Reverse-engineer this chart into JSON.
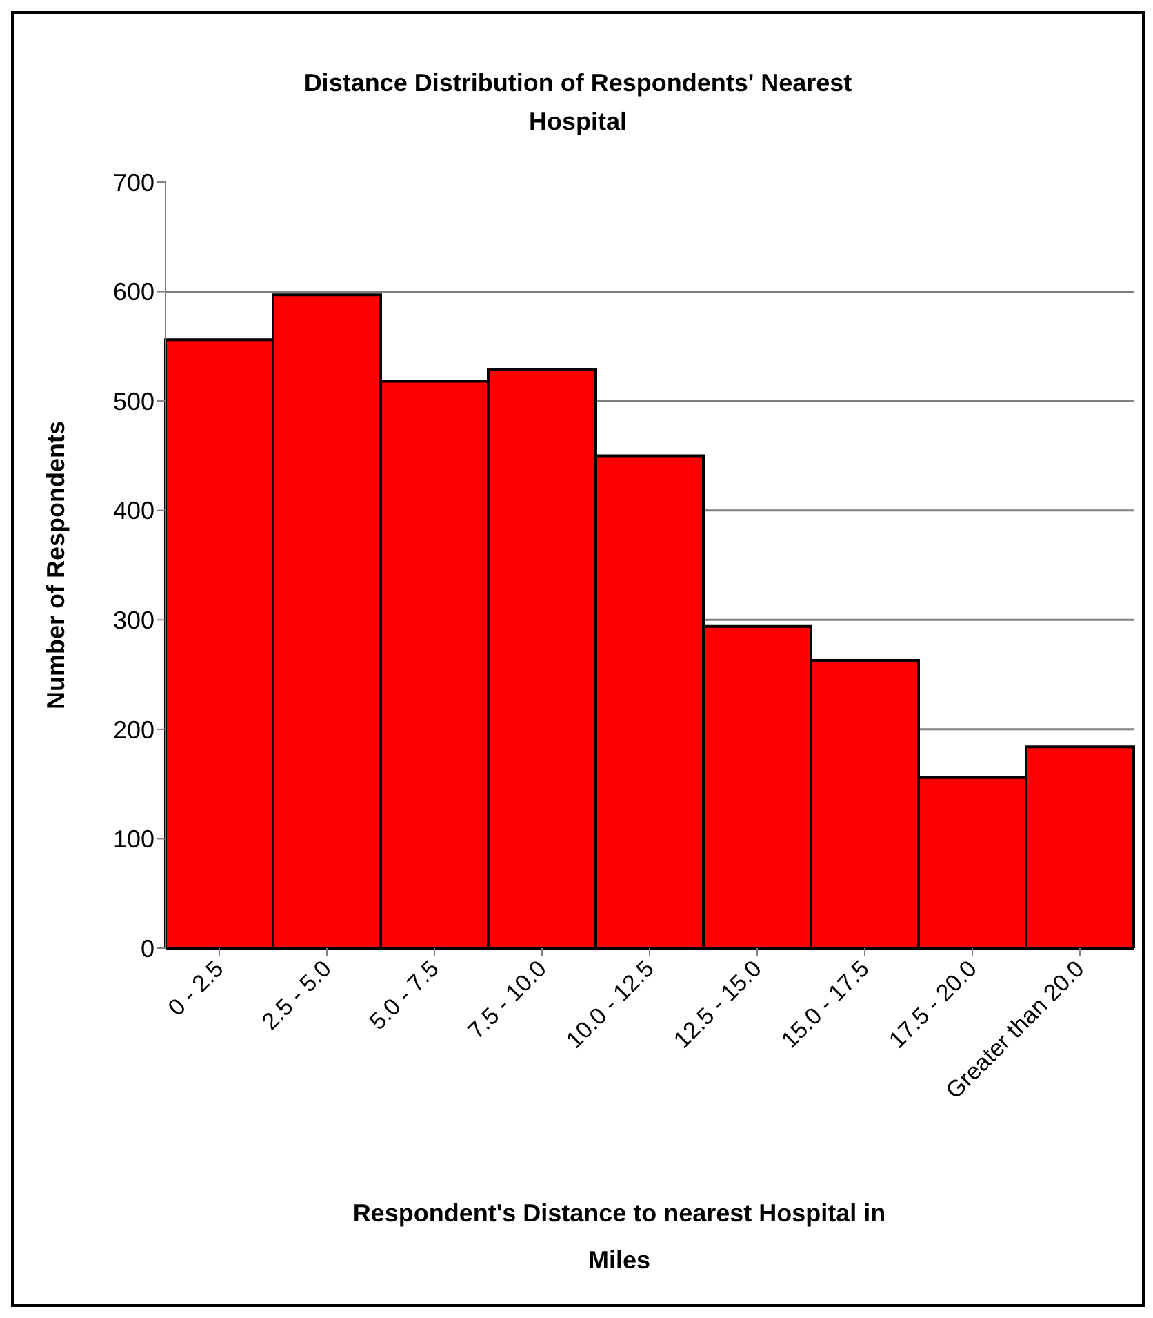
{
  "chart_data": {
    "type": "bar",
    "title": "Distance Distribution of Respondents' Nearest Hospital",
    "xlabel": "Respondent's Distance to nearest Hospital in Miles",
    "ylabel": "Number of Respondents",
    "categories": [
      "0 - 2.5",
      "2.5 - 5.0",
      "5.0 - 7.5",
      "7.5 - 10.0",
      "10.0 - 12.5",
      "12.5 - 15.0",
      "15.0 - 17.5",
      "17.5 - 20.0",
      "Greater than 20.0"
    ],
    "values": [
      556,
      597,
      518,
      529,
      450,
      294,
      263,
      156,
      184
    ],
    "color": "#ff0000",
    "ylim": [
      0,
      700
    ],
    "yticks": [
      0,
      100,
      200,
      300,
      400,
      500,
      600,
      700
    ],
    "grid": "y"
  }
}
